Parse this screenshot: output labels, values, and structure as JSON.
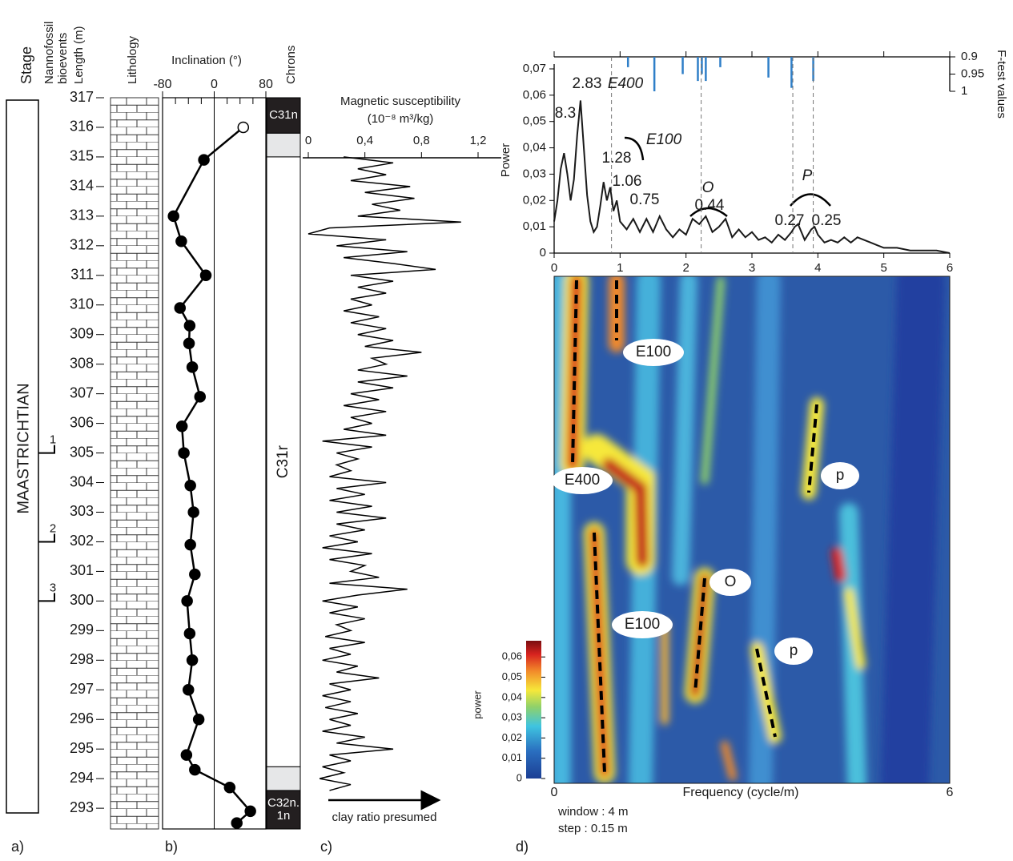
{
  "chart_data": [
    {
      "type": "strat-column",
      "stage_header": "Stage",
      "bioevents_header": [
        "Nannofossil",
        "bioevents"
      ],
      "length_header": "Length (m)",
      "lithology_header": "Lithology",
      "stage": "MAASTRICHTIAN",
      "ylim": [
        317,
        292.3
      ],
      "yticks": [
        293,
        294,
        295,
        296,
        297,
        298,
        299,
        300,
        301,
        302,
        303,
        304,
        305,
        306,
        307,
        308,
        309,
        310,
        311,
        312,
        313,
        314,
        315,
        316,
        317
      ],
      "bioevents": [
        {
          "label": "1",
          "depth": 305
        },
        {
          "label": "2",
          "depth": 302
        },
        {
          "label": "3",
          "depth": 300
        }
      ],
      "panel_label": "a)"
    },
    {
      "type": "line",
      "x_label": "Inclination (°)",
      "xlim": [
        -80,
        80
      ],
      "xticks": [
        -80,
        0,
        80
      ],
      "color": "#000000",
      "depths": [
        316.0,
        314.9,
        313.0,
        312.15,
        311.0,
        309.9,
        309.3,
        308.7,
        307.9,
        306.9,
        305.9,
        305.0,
        303.9,
        303.0,
        301.9,
        300.9,
        300.0,
        298.9,
        298.0,
        297.0,
        296.0,
        294.8,
        294.3,
        293.7,
        292.9,
        292.5
      ],
      "values": [
        45,
        -16,
        -63,
        -51,
        -13,
        -53,
        -38,
        -39,
        -34,
        -22,
        -50,
        -47,
        -37,
        -32,
        -37,
        -30,
        -42,
        -38,
        -34,
        -40,
        -24,
        -43,
        -30,
        24,
        56,
        35
      ],
      "marker_fills": [
        "#ffffff",
        "#000000",
        "#000000",
        "#000000",
        "#000000",
        "#000000",
        "#000000",
        "#000000",
        "#000000",
        "#000000",
        "#000000",
        "#000000",
        "#000000",
        "#000000",
        "#000000",
        "#000000",
        "#000000",
        "#000000",
        "#000000",
        "#000000",
        "#000000",
        "#000000",
        "#000000",
        "#000000",
        "#000000",
        "#000000"
      ],
      "panel_label": "b)"
    },
    {
      "type": "chrons",
      "header": "Chrons",
      "intervals": [
        {
          "label": "C31n",
          "top": 317,
          "bottom": 315.8,
          "color": "#231f20"
        },
        {
          "label": null,
          "top": 315.8,
          "bottom": 315,
          "color": "#e6e7e8"
        },
        {
          "label": "C31r",
          "top": 315,
          "bottom": 294.4,
          "color": "#ffffff"
        },
        {
          "label": null,
          "top": 294.4,
          "bottom": 293.6,
          "color": "#e6e7e8"
        },
        {
          "label": [
            "C32n.",
            "1n"
          ],
          "top": 293.6,
          "bottom": 292.3,
          "color": "#231f20"
        }
      ]
    },
    {
      "type": "line",
      "title": "Magnetic susceptibility",
      "unit": "(10⁻⁸ m³/kg)",
      "xlim": [
        0,
        1.2
      ],
      "xticks": [
        0,
        {
          "value": 0.4,
          "label": "0,4"
        },
        {
          "value": 0.8,
          "label": "0,8"
        },
        {
          "value": 1.2,
          "label": "1,2"
        }
      ],
      "color": "#000000",
      "x": [
        315.0,
        314.8,
        314.6,
        314.4,
        314.2,
        314.0,
        313.8,
        313.6,
        313.4,
        313.2,
        313.0,
        312.8,
        312.6,
        312.4,
        312.2,
        312.0,
        311.8,
        311.6,
        311.4,
        311.2,
        311.0,
        310.8,
        310.6,
        310.4,
        310.2,
        310.0,
        309.8,
        309.6,
        309.4,
        309.2,
        309.0,
        308.8,
        308.6,
        308.4,
        308.2,
        308.0,
        307.8,
        307.6,
        307.4,
        307.2,
        307.0,
        306.8,
        306.6,
        306.4,
        306.2,
        306.0,
        305.8,
        305.6,
        305.4,
        305.2,
        305.0,
        304.8,
        304.6,
        304.4,
        304.2,
        304.0,
        303.8,
        303.6,
        303.4,
        303.2,
        303.0,
        302.8,
        302.6,
        302.4,
        302.2,
        302.0,
        301.8,
        301.6,
        301.4,
        301.2,
        301.0,
        300.8,
        300.6,
        300.4,
        300.2,
        300.0,
        299.8,
        299.6,
        299.4,
        299.2,
        299.0,
        298.8,
        298.6,
        298.4,
        298.2,
        298.0,
        297.8,
        297.6,
        297.4,
        297.2,
        297.0,
        296.8,
        296.6,
        296.4,
        296.2,
        296.0,
        295.8,
        295.6,
        295.4,
        295.2,
        295.0,
        294.8,
        294.6,
        294.4,
        294.2,
        294.0,
        293.8,
        293.6
      ],
      "values": [
        0.25,
        0.6,
        0.35,
        0.55,
        0.3,
        0.72,
        0.4,
        0.75,
        0.45,
        0.65,
        0.35,
        1.08,
        0.15,
        0.0,
        0.55,
        0.2,
        0.7,
        0.25,
        0.6,
        0.9,
        0.3,
        0.6,
        0.35,
        0.55,
        0.3,
        0.45,
        0.25,
        0.5,
        0.3,
        0.55,
        0.35,
        0.6,
        0.4,
        0.8,
        0.45,
        0.55,
        0.35,
        0.7,
        0.35,
        0.6,
        0.3,
        0.5,
        0.25,
        0.55,
        0.3,
        0.45,
        0.25,
        0.55,
        0.1,
        0.45,
        0.2,
        0.35,
        0.2,
        0.3,
        0.15,
        0.55,
        0.2,
        0.4,
        0.15,
        0.45,
        0.2,
        0.55,
        0.2,
        0.4,
        0.15,
        0.35,
        0.1,
        0.45,
        0.15,
        0.4,
        0.3,
        0.5,
        0.15,
        0.7,
        0.35,
        0.1,
        0.35,
        0.15,
        0.4,
        0.2,
        0.3,
        0.12,
        0.4,
        0.15,
        0.3,
        0.1,
        0.35,
        0.2,
        0.5,
        0.15,
        0.3,
        0.1,
        0.3,
        0.12,
        0.35,
        0.15,
        0.3,
        0.1,
        0.4,
        0.2,
        0.6,
        0.15,
        0.3,
        0.1,
        0.25,
        0.08,
        0.3,
        0.15
      ],
      "arrow_label": "clay ratio presumed",
      "panel_label": "c)"
    },
    {
      "type": "line",
      "y_label": "Power",
      "xlim": [
        0,
        6
      ],
      "xticks": [
        0,
        1,
        2,
        3,
        4,
        5,
        6
      ],
      "ylim": [
        0,
        0.07
      ],
      "yticks": [
        0,
        {
          "value": 0.01,
          "label": "0,01"
        },
        {
          "value": 0.02,
          "label": "0,02"
        },
        {
          "value": 0.03,
          "label": "0,03"
        },
        {
          "value": 0.04,
          "label": "0,04"
        },
        {
          "value": 0.05,
          "label": "0,05"
        },
        {
          "value": 0.06,
          "label": "0,06"
        },
        {
          "value": 0.07,
          "label": "0,07"
        }
      ],
      "color": "#1a1a1a",
      "x": [
        0,
        0.05,
        0.1,
        0.15,
        0.2,
        0.25,
        0.3,
        0.35,
        0.4,
        0.45,
        0.5,
        0.55,
        0.6,
        0.65,
        0.7,
        0.75,
        0.8,
        0.85,
        0.9,
        0.95,
        1.0,
        1.1,
        1.2,
        1.3,
        1.4,
        1.5,
        1.6,
        1.7,
        1.8,
        1.9,
        2.0,
        2.1,
        2.2,
        2.3,
        2.4,
        2.5,
        2.6,
        2.7,
        2.8,
        2.9,
        3.0,
        3.1,
        3.2,
        3.3,
        3.4,
        3.5,
        3.6,
        3.65,
        3.7,
        3.8,
        3.9,
        3.95,
        4.0,
        4.1,
        4.2,
        4.3,
        4.4,
        4.5,
        4.6,
        4.7,
        4.8,
        4.9,
        5.0,
        5.2,
        5.4,
        5.6,
        5.8,
        6.0
      ],
      "values": [
        0.012,
        0.02,
        0.032,
        0.038,
        0.03,
        0.02,
        0.028,
        0.045,
        0.058,
        0.04,
        0.022,
        0.012,
        0.008,
        0.01,
        0.018,
        0.027,
        0.02,
        0.025,
        0.016,
        0.02,
        0.012,
        0.009,
        0.013,
        0.008,
        0.013,
        0.008,
        0.014,
        0.009,
        0.006,
        0.009,
        0.007,
        0.013,
        0.011,
        0.014,
        0.008,
        0.01,
        0.013,
        0.006,
        0.009,
        0.006,
        0.008,
        0.005,
        0.006,
        0.004,
        0.007,
        0.005,
        0.008,
        0.01,
        0.011,
        0.005,
        0.009,
        0.01,
        0.007,
        0.004,
        0.005,
        0.004,
        0.006,
        0.004,
        0.006,
        0.005,
        0.004,
        0.003,
        0.002,
        0.002,
        0.001,
        0.001,
        0.001,
        0.0
      ],
      "f_label": "F-test values",
      "f_lim": [
        0.9,
        1
      ],
      "f_ticks": [
        0.9,
        0.95,
        1
      ],
      "f_color": "#2f7fc8",
      "f_x": [
        1.12,
        1.52,
        1.95,
        2.18,
        2.24,
        2.3,
        2.52,
        3.25,
        3.6,
        3.93
      ],
      "f_values": [
        0.93,
        1.0,
        0.95,
        0.97,
        0.95,
        0.97,
        0.93,
        0.96,
        0.99,
        0.97
      ],
      "dashed_lines": [
        0.87,
        2.23,
        3.62,
        3.93
      ],
      "annotations": [
        "8.3",
        "2.83",
        "E400",
        "1.28",
        "E100",
        "1.06",
        "0.75",
        "O",
        "0.44",
        "P",
        "0.27",
        "0.25"
      ]
    },
    {
      "type": "heatmap",
      "x_label": "Frequency (cycle/m)",
      "xticks": [
        0,
        6
      ],
      "colorbar_label": "power",
      "clim": [
        0,
        0.068
      ],
      "colorbar_ticks": [
        0,
        {
          "value": 0.01,
          "label": "0,01"
        },
        {
          "value": 0.02,
          "label": "0,02"
        },
        {
          "value": 0.03,
          "label": "0,03"
        },
        {
          "value": 0.04,
          "label": "0,04"
        },
        {
          "value": 0.05,
          "label": "0,05"
        },
        {
          "value": 0.06,
          "label": "0,06"
        }
      ],
      "window": "window : 4 m",
      "step": "step : 0.15 m",
      "annotations": [
        "E100",
        "E400",
        "p",
        "O",
        "E100",
        "p"
      ],
      "panel_label": "d)"
    }
  ]
}
